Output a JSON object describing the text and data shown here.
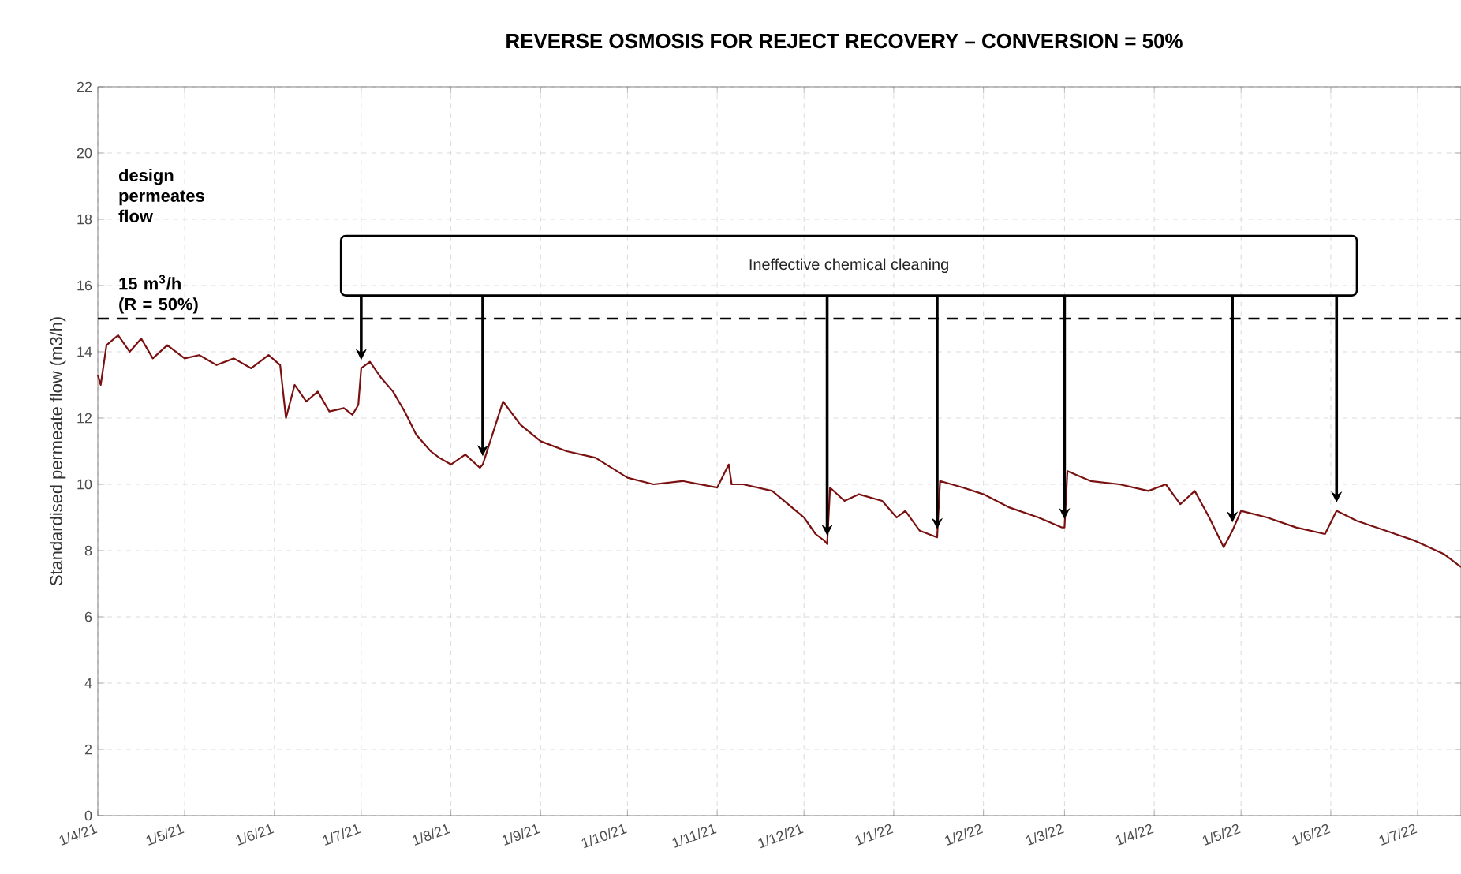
{
  "chart_data": {
    "type": "line",
    "title": "REVERSE OSMOSIS FOR REJECT RECOVERY – CONVERSION = 50%",
    "ylabel": "Standardised permeate flow (m3/h)",
    "xlim": [
      "2021-04-01",
      "2022-07-16"
    ],
    "xticks": [
      {
        "value": "2021-04-01",
        "label": "1/4/21"
      },
      {
        "value": "2021-05-01",
        "label": "1/5/21"
      },
      {
        "value": "2021-06-01",
        "label": "1/6/21"
      },
      {
        "value": "2021-07-01",
        "label": "1/7/21"
      },
      {
        "value": "2021-08-01",
        "label": "1/8/21"
      },
      {
        "value": "2021-09-01",
        "label": "1/9/21"
      },
      {
        "value": "2021-10-01",
        "label": "1/10/21"
      },
      {
        "value": "2021-11-01",
        "label": "1/11/21"
      },
      {
        "value": "2021-12-01",
        "label": "1/12/21"
      },
      {
        "value": "2022-01-01",
        "label": "1/1/22"
      },
      {
        "value": "2022-02-01",
        "label": "1/2/22"
      },
      {
        "value": "2022-03-01",
        "label": "1/3/22"
      },
      {
        "value": "2022-04-01",
        "label": "1/4/22"
      },
      {
        "value": "2022-05-01",
        "label": "1/5/22"
      },
      {
        "value": "2022-06-01",
        "label": "1/6/22"
      },
      {
        "value": "2022-07-01",
        "label": "1/7/22"
      }
    ],
    "ylim": [
      0,
      22
    ],
    "yticks": [
      0,
      2,
      4,
      6,
      8,
      10,
      12,
      14,
      16,
      18,
      20,
      22
    ],
    "grid": true,
    "series": [
      {
        "color": "#7a1010",
        "x": [
          "2021-04-01",
          "2021-04-02",
          "2021-04-04",
          "2021-04-08",
          "2021-04-12",
          "2021-04-16",
          "2021-04-20",
          "2021-04-25",
          "2021-05-01",
          "2021-05-06",
          "2021-05-12",
          "2021-05-18",
          "2021-05-24",
          "2021-05-30",
          "2021-06-03",
          "2021-06-05",
          "2021-06-08",
          "2021-06-12",
          "2021-06-16",
          "2021-06-20",
          "2021-06-25",
          "2021-06-28",
          "2021-06-30",
          "2021-07-01",
          "2021-07-04",
          "2021-07-08",
          "2021-07-12",
          "2021-07-16",
          "2021-07-20",
          "2021-07-25",
          "2021-07-28",
          "2021-08-01",
          "2021-08-06",
          "2021-08-11",
          "2021-08-12",
          "2021-08-19",
          "2021-08-25",
          "2021-09-01",
          "2021-09-10",
          "2021-09-20",
          "2021-10-01",
          "2021-10-10",
          "2021-10-20",
          "2021-11-01",
          "2021-11-05",
          "2021-11-06",
          "2021-11-10",
          "2021-11-20",
          "2021-12-01",
          "2021-12-05",
          "2021-12-08",
          "2021-12-09",
          "2021-12-10",
          "2021-12-15",
          "2021-12-20",
          "2021-12-28",
          "2022-01-02",
          "2022-01-05",
          "2022-01-10",
          "2022-01-16",
          "2022-01-17",
          "2022-01-25",
          "2022-02-01",
          "2022-02-10",
          "2022-02-20",
          "2022-02-28",
          "2022-03-01",
          "2022-03-02",
          "2022-03-10",
          "2022-03-20",
          "2022-03-30",
          "2022-04-05",
          "2022-04-10",
          "2022-04-15",
          "2022-04-20",
          "2022-04-25",
          "2022-04-28",
          "2022-05-01",
          "2022-05-10",
          "2022-05-20",
          "2022-05-30",
          "2022-06-03",
          "2022-06-10",
          "2022-06-20",
          "2022-06-30",
          "2022-07-05",
          "2022-07-10",
          "2022-07-16"
        ],
        "values": [
          13.3,
          13.0,
          14.2,
          14.5,
          14.0,
          14.4,
          13.8,
          14.2,
          13.8,
          13.9,
          13.6,
          13.8,
          13.5,
          13.9,
          13.6,
          12.0,
          13.0,
          12.5,
          12.8,
          12.2,
          12.3,
          12.1,
          12.4,
          13.5,
          13.7,
          13.2,
          12.8,
          12.2,
          11.5,
          11.0,
          10.8,
          10.6,
          10.9,
          10.5,
          10.6,
          12.5,
          11.8,
          11.3,
          11.0,
          10.8,
          10.2,
          10.0,
          10.1,
          9.9,
          10.6,
          10.0,
          10.0,
          9.8,
          9.0,
          8.5,
          8.3,
          8.2,
          9.9,
          9.5,
          9.7,
          9.5,
          9.0,
          9.2,
          8.6,
          8.4,
          10.1,
          9.9,
          9.7,
          9.3,
          9.0,
          8.7,
          8.7,
          10.4,
          10.1,
          10.0,
          9.8,
          10.0,
          9.4,
          9.8,
          9.0,
          8.1,
          8.6,
          9.2,
          9.0,
          8.7,
          8.5,
          9.2,
          8.9,
          8.6,
          8.3,
          8.1,
          7.9,
          7.5
        ]
      }
    ],
    "ref_lines": [
      {
        "axis": "y",
        "value": 15,
        "label": "15 m$^{3}$/h (R = 50%)",
        "line_style": "dashed",
        "color": "#000000"
      }
    ],
    "annotations": [
      "design permeates flow",
      "Ineffective chemical cleaning"
    ]
  }
}
